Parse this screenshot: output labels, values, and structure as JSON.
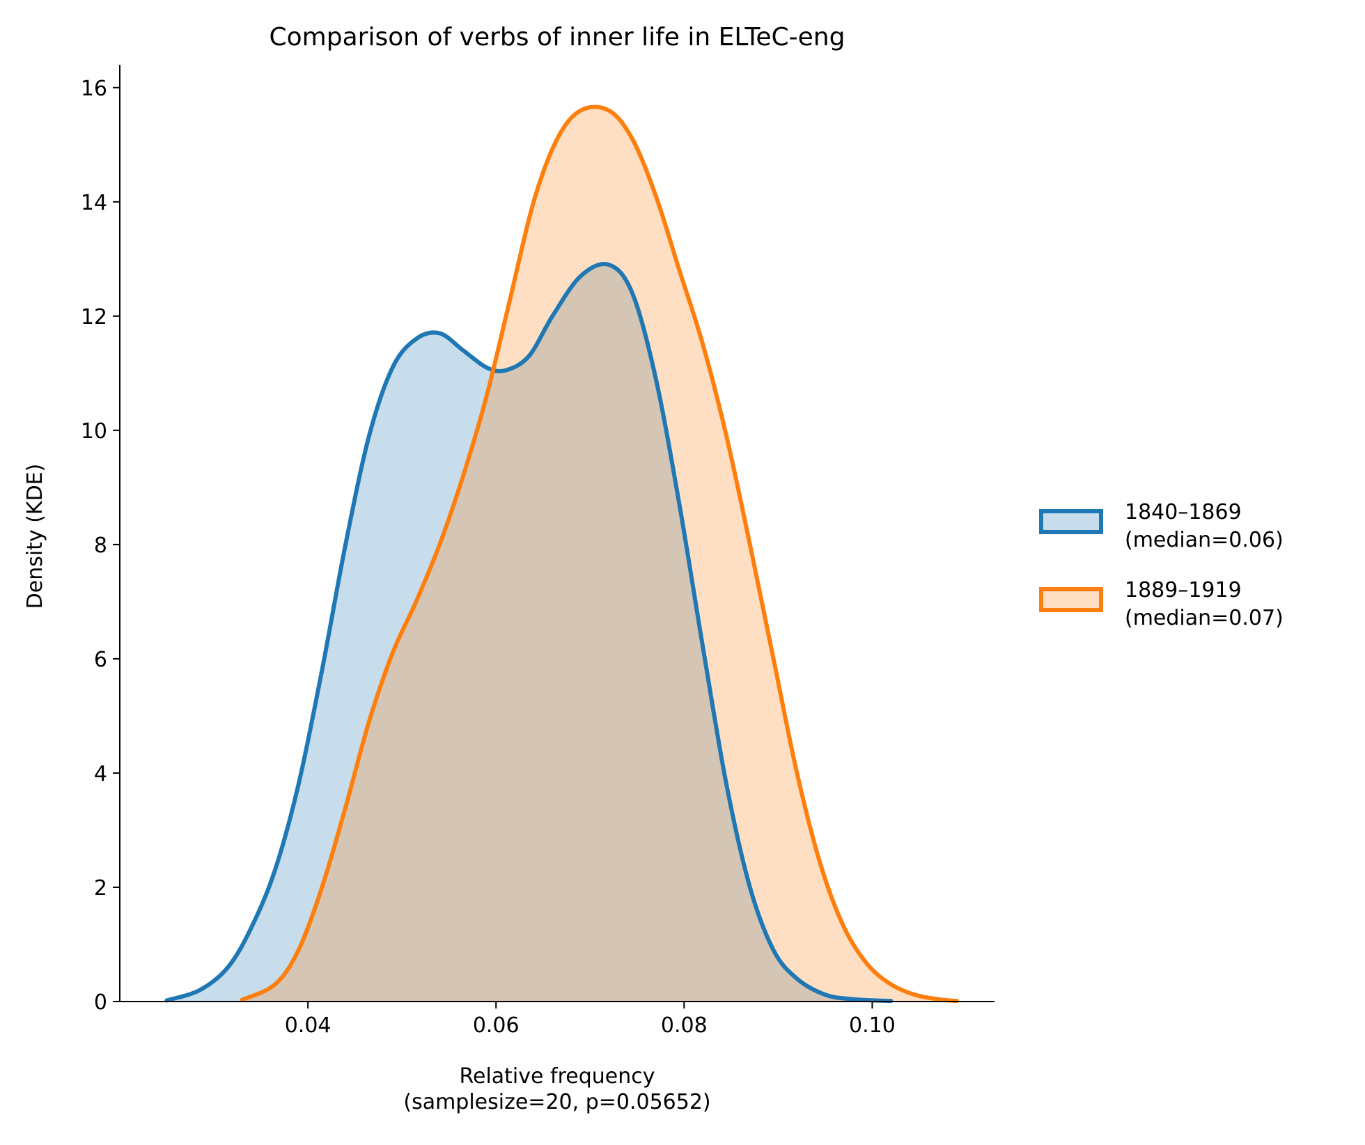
{
  "chart_data": {
    "type": "area",
    "title": "Comparison of verbs of inner life in ELTeC-eng",
    "xlabel": [
      "Relative frequency",
      "(samplesize=20, p=0.05652)"
    ],
    "ylabel": "Density (KDE)",
    "xlim": [
      0.02,
      0.113
    ],
    "ylim": [
      0,
      16.4
    ],
    "x_ticks": [
      0.04,
      0.06,
      0.08,
      0.1
    ],
    "x_tick_labels": [
      "0.04",
      "0.06",
      "0.08",
      "0.10"
    ],
    "y_ticks": [
      0,
      2,
      4,
      6,
      8,
      10,
      12,
      14,
      16
    ],
    "y_tick_labels": [
      "0",
      "2",
      "4",
      "6",
      "8",
      "10",
      "12",
      "14",
      "16"
    ],
    "grid": false,
    "legend_placement": "right-outside",
    "series": [
      {
        "name": [
          "1840–1869",
          "(median=0.06)"
        ],
        "color": "#1f77b4",
        "x": [
          0.025,
          0.0285,
          0.0315,
          0.034,
          0.0365,
          0.039,
          0.0415,
          0.044,
          0.0465,
          0.049,
          0.0515,
          0.054,
          0.0565,
          0.059,
          0.061,
          0.0635,
          0.066,
          0.069,
          0.072,
          0.0745,
          0.077,
          0.0795,
          0.082,
          0.0845,
          0.087,
          0.0895,
          0.092,
          0.095,
          0.098,
          0.102
        ],
        "y": [
          0.02,
          0.2,
          0.6,
          1.3,
          2.3,
          3.8,
          5.8,
          8.0,
          9.9,
          11.1,
          11.6,
          11.7,
          11.4,
          11.1,
          11.05,
          11.3,
          12.0,
          12.7,
          12.9,
          12.4,
          10.9,
          8.7,
          6.2,
          3.8,
          2.0,
          0.9,
          0.4,
          0.12,
          0.04,
          0.01
        ]
      },
      {
        "name": [
          "1889–1919",
          "(median=0.07)"
        ],
        "color": "#ff7f0e",
        "x": [
          0.033,
          0.0365,
          0.039,
          0.0415,
          0.044,
          0.0465,
          0.049,
          0.0515,
          0.054,
          0.0565,
          0.059,
          0.0615,
          0.064,
          0.0665,
          0.069,
          0.072,
          0.0745,
          0.077,
          0.0795,
          0.082,
          0.0845,
          0.087,
          0.0895,
          0.092,
          0.0945,
          0.097,
          0.0995,
          0.102,
          0.1045,
          0.107,
          0.109
        ],
        "y": [
          0.03,
          0.3,
          0.9,
          2.0,
          3.4,
          4.9,
          6.1,
          7.0,
          8.0,
          9.2,
          10.6,
          12.3,
          14.0,
          15.1,
          15.6,
          15.6,
          15.1,
          14.1,
          12.8,
          11.5,
          9.9,
          8.0,
          6.0,
          4.0,
          2.4,
          1.3,
          0.65,
          0.3,
          0.12,
          0.04,
          0.01
        ]
      }
    ]
  }
}
